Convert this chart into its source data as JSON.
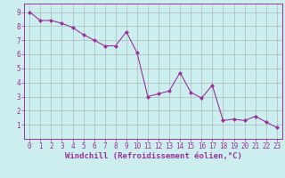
{
  "x": [
    0,
    1,
    2,
    3,
    4,
    5,
    6,
    7,
    8,
    9,
    10,
    11,
    12,
    13,
    14,
    15,
    16,
    17,
    18,
    19,
    20,
    21,
    22,
    23
  ],
  "y": [
    9.0,
    8.4,
    8.4,
    8.2,
    7.9,
    7.4,
    7.0,
    6.6,
    6.6,
    7.6,
    6.1,
    3.0,
    3.2,
    3.4,
    4.7,
    3.3,
    2.9,
    3.8,
    1.3,
    1.4,
    1.3,
    1.6,
    1.2,
    0.8
  ],
  "line_color": "#993399",
  "marker": "D",
  "marker_size": 2.0,
  "line_width": 0.8,
  "bg_color": "#cceeee",
  "grid_color": "#aabbbb",
  "xlabel": "Windchill (Refroidissement éolien,°C)",
  "xlim": [
    -0.5,
    23.5
  ],
  "ylim": [
    0,
    9.6
  ],
  "xticks": [
    0,
    1,
    2,
    3,
    4,
    5,
    6,
    7,
    8,
    9,
    10,
    11,
    12,
    13,
    14,
    15,
    16,
    17,
    18,
    19,
    20,
    21,
    22,
    23
  ],
  "yticks": [
    1,
    2,
    3,
    4,
    5,
    6,
    7,
    8,
    9
  ],
  "tick_label_fontsize": 5.5,
  "xlabel_fontsize": 6.5,
  "axis_color": "#993399",
  "tick_color": "#993399"
}
